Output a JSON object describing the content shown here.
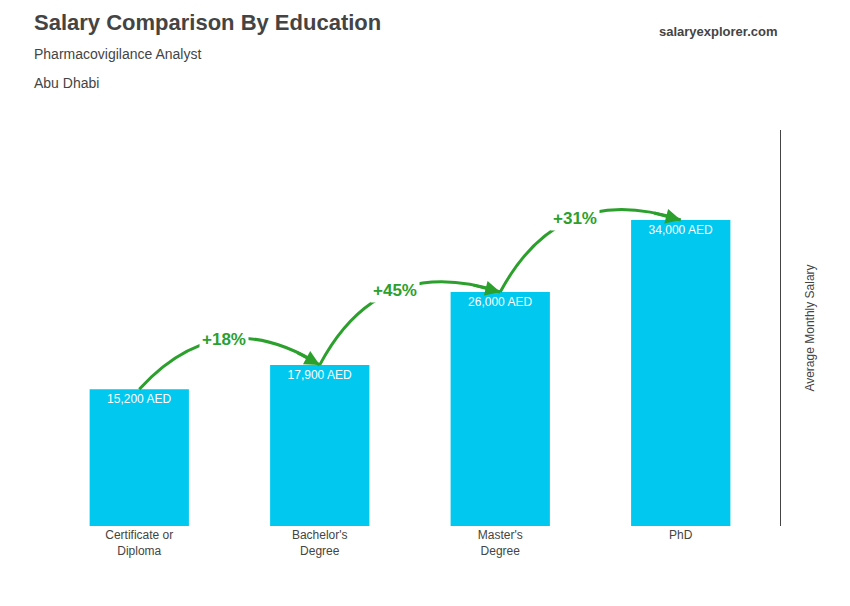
{
  "chart_data": {
    "type": "bar",
    "title": "Salary Comparison By Education",
    "subtitle": "Pharmacovigilance Analyst\nAbu Dhabi",
    "ylabel": "Average Monthly Salary",
    "categories": [
      "Certificate or\nDiploma",
      "Bachelor's\nDegree",
      "Master's\nDegree",
      "PhD"
    ],
    "values": [
      15200,
      17900,
      26000,
      34000
    ],
    "value_labels": [
      "15,200 AED",
      "17,900 AED",
      "26,000 AED",
      "34,000 AED"
    ],
    "data_labels": true,
    "color": "#00c8ef",
    "ylim": [
      0,
      44000
    ],
    "tick_labels": "x",
    "grid": false,
    "annotations": [
      {
        "text": "+18%",
        "from": "Certificate or\nDiploma",
        "to": "Bachelor's\nDegree"
      },
      {
        "text": "+45%",
        "from": "Bachelor's\nDegree",
        "to": "Master's\nDegree"
      },
      {
        "text": "+31%",
        "from": "Master's\nDegree",
        "to": "PhD"
      },
      {
        "text": "salaryexplorer.com"
      }
    ]
  }
}
